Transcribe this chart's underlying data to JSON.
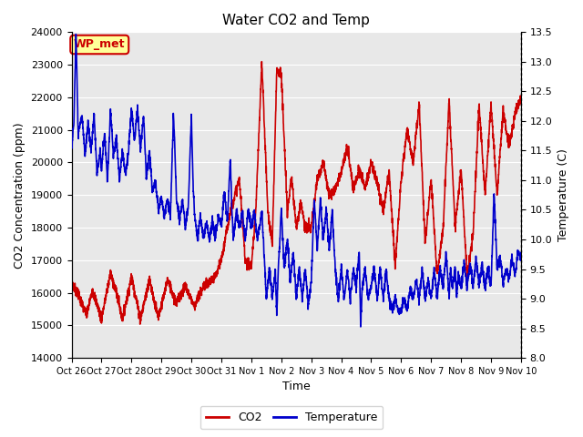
{
  "title": "Water CO2 and Temp",
  "xlabel": "Time",
  "ylabel_left": "CO2 Concentration (ppm)",
  "ylabel_right": "Temperature (C)",
  "ylim_left": [
    14000,
    24000
  ],
  "ylim_right": [
    8.0,
    13.5
  ],
  "yticks_left": [
    14000,
    15000,
    16000,
    17000,
    18000,
    19000,
    20000,
    21000,
    22000,
    23000,
    24000
  ],
  "yticks_right": [
    8.0,
    8.5,
    9.0,
    9.5,
    10.0,
    10.5,
    11.0,
    11.5,
    12.0,
    12.5,
    13.0,
    13.5
  ],
  "xtick_labels": [
    "Oct 26",
    "Oct 27",
    "Oct 28",
    "Oct 29",
    "Oct 30",
    "Oct 31",
    "Nov 1",
    "Nov 2",
    "Nov 3",
    "Nov 4",
    "Nov 5",
    "Nov 6",
    "Nov 7",
    "Nov 8",
    "Nov 9",
    "Nov 10"
  ],
  "co2_color": "#cc0000",
  "temp_color": "#0000cc",
  "plot_bg_color": "#e8e8e8",
  "annotation_text": "WP_met",
  "annotation_color": "#cc0000",
  "annotation_bg": "#ffff99",
  "grid_color": "#ffffff",
  "legend_co2": "CO2",
  "legend_temp": "Temperature",
  "linewidth": 1.2
}
